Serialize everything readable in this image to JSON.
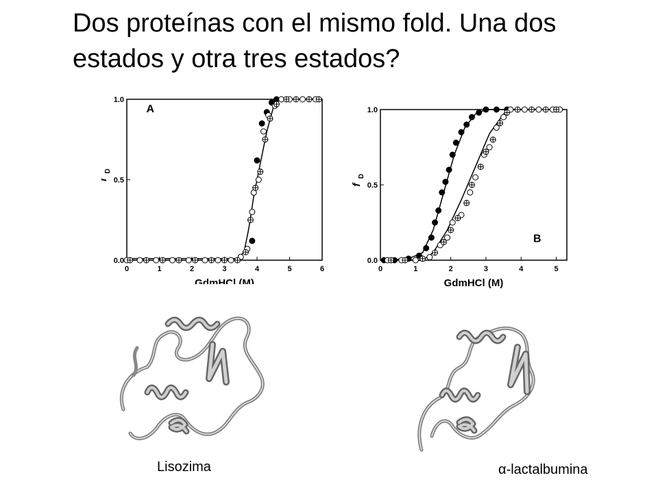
{
  "slide": {
    "title": "Dos proteínas con el mismo fold. Una dos estados y otra tres estados?",
    "captions": {
      "left": "Lisozima",
      "right_prefix": "α",
      "right_suffix": "-lactalbumina"
    }
  },
  "chart_data": [
    {
      "type": "scatter",
      "panel_label": "A",
      "xlabel": "GdmHCl (M)",
      "ylabel": "f",
      "ylabel_sub": "D",
      "xlim": [
        0,
        6
      ],
      "ylim": [
        0,
        1
      ],
      "xticks": [
        "0",
        "1",
        "2",
        "3",
        "4",
        "5",
        "6"
      ],
      "yticks": [
        "0.0",
        "0.5",
        "1.0"
      ],
      "grid": false,
      "fit_curve": [
        [
          0,
          0.01
        ],
        [
          3.4,
          0.01
        ],
        [
          3.6,
          0.05
        ],
        [
          3.75,
          0.2
        ],
        [
          3.9,
          0.4
        ],
        [
          4.1,
          0.6
        ],
        [
          4.3,
          0.8
        ],
        [
          4.5,
          0.95
        ],
        [
          4.7,
          1.0
        ],
        [
          6,
          1.0
        ]
      ],
      "series": [
        {
          "marker": "filled",
          "points": [
            [
              3.85,
              0.12
            ],
            [
              4.0,
              0.62
            ],
            [
              4.15,
              0.85
            ],
            [
              4.3,
              0.92
            ],
            [
              4.45,
              0.98
            ],
            [
              4.6,
              1.0
            ]
          ]
        },
        {
          "marker": "open",
          "points": [
            [
              0,
              0.0
            ],
            [
              0.4,
              0.0
            ],
            [
              0.9,
              0.0
            ],
            [
              1.4,
              0.0
            ],
            [
              1.9,
              0.0
            ],
            [
              2.4,
              0.0
            ],
            [
              2.8,
              0.0
            ],
            [
              3.2,
              0.0
            ],
            [
              3.5,
              0.02
            ],
            [
              3.7,
              0.07
            ],
            [
              3.85,
              0.3
            ],
            [
              3.9,
              0.42
            ],
            [
              4.05,
              0.5
            ],
            [
              4.2,
              0.8
            ],
            [
              4.35,
              0.9
            ],
            [
              4.55,
              0.96
            ],
            [
              4.75,
              1.0
            ],
            [
              5.0,
              1.0
            ],
            [
              5.4,
              1.0
            ],
            [
              5.8,
              1.0
            ]
          ]
        },
        {
          "marker": "crossed",
          "points": [
            [
              0.1,
              0.0
            ],
            [
              0.6,
              0.0
            ],
            [
              1.1,
              0.0
            ],
            [
              1.6,
              0.0
            ],
            [
              2.1,
              0.0
            ],
            [
              2.6,
              0.0
            ],
            [
              3.0,
              0.0
            ],
            [
              3.4,
              0.0
            ],
            [
              3.65,
              0.05
            ],
            [
              3.8,
              0.25
            ],
            [
              3.95,
              0.45
            ],
            [
              4.1,
              0.55
            ],
            [
              4.25,
              0.75
            ],
            [
              4.4,
              0.88
            ],
            [
              4.6,
              0.97
            ],
            [
              4.9,
              1.0
            ],
            [
              5.2,
              1.0
            ],
            [
              5.6,
              1.0
            ],
            [
              5.9,
              1.0
            ]
          ]
        }
      ]
    },
    {
      "type": "scatter",
      "panel_label": "B",
      "xlabel": "GdmHCl (M)",
      "ylabel": "f",
      "ylabel_sub": "D",
      "xlim": [
        0,
        5.3
      ],
      "ylim": [
        0,
        1
      ],
      "xticks": [
        "0",
        "1",
        "2",
        "3",
        "4",
        "5"
      ],
      "yticks": [
        "0.0",
        "0.5",
        "1.0"
      ],
      "grid": false,
      "fit_curves": [
        [
          [
            0,
            0.0
          ],
          [
            0.8,
            0.01
          ],
          [
            1.2,
            0.05
          ],
          [
            1.5,
            0.2
          ],
          [
            1.8,
            0.45
          ],
          [
            2.1,
            0.7
          ],
          [
            2.4,
            0.88
          ],
          [
            2.7,
            0.97
          ],
          [
            3.0,
            1.0
          ],
          [
            5.2,
            1.0
          ]
        ],
        [
          [
            0,
            0.0
          ],
          [
            1.2,
            0.0
          ],
          [
            1.5,
            0.05
          ],
          [
            1.9,
            0.2
          ],
          [
            2.3,
            0.4
          ],
          [
            2.7,
            0.62
          ],
          [
            3.1,
            0.84
          ],
          [
            3.5,
            0.97
          ],
          [
            3.8,
            1.0
          ],
          [
            5.2,
            1.0
          ]
        ]
      ],
      "series": [
        {
          "marker": "filled",
          "points": [
            [
              0.1,
              0.0
            ],
            [
              0.4,
              0.0
            ],
            [
              0.8,
              0.01
            ],
            [
              1.1,
              0.03
            ],
            [
              1.3,
              0.08
            ],
            [
              1.45,
              0.15
            ],
            [
              1.55,
              0.25
            ],
            [
              1.65,
              0.33
            ],
            [
              1.75,
              0.45
            ],
            [
              1.85,
              0.52
            ],
            [
              1.95,
              0.6
            ],
            [
              2.05,
              0.7
            ],
            [
              2.15,
              0.78
            ],
            [
              2.3,
              0.85
            ],
            [
              2.45,
              0.9
            ],
            [
              2.6,
              0.95
            ],
            [
              2.8,
              0.98
            ],
            [
              3.0,
              1.0
            ],
            [
              3.3,
              1.0
            ],
            [
              3.6,
              1.0
            ]
          ]
        },
        {
          "marker": "open",
          "points": [
            [
              0.2,
              0.0
            ],
            [
              0.6,
              0.0
            ],
            [
              1.0,
              0.0
            ],
            [
              1.4,
              0.02
            ],
            [
              1.7,
              0.1
            ],
            [
              1.9,
              0.15
            ],
            [
              2.05,
              0.25
            ],
            [
              2.3,
              0.3
            ],
            [
              2.55,
              0.45
            ],
            [
              2.7,
              0.55
            ],
            [
              2.95,
              0.7
            ],
            [
              3.1,
              0.75
            ],
            [
              3.3,
              0.88
            ],
            [
              3.5,
              0.95
            ],
            [
              3.7,
              1.0
            ],
            [
              4.1,
              1.0
            ],
            [
              4.5,
              1.0
            ],
            [
              4.9,
              1.0
            ],
            [
              5.1,
              1.0
            ]
          ]
        },
        {
          "marker": "crossed",
          "points": [
            [
              0.3,
              0.0
            ],
            [
              0.7,
              0.0
            ],
            [
              1.2,
              0.01
            ],
            [
              1.55,
              0.05
            ],
            [
              1.8,
              0.12
            ],
            [
              2.0,
              0.2
            ],
            [
              2.2,
              0.28
            ],
            [
              2.45,
              0.38
            ],
            [
              2.6,
              0.5
            ],
            [
              2.85,
              0.62
            ],
            [
              3.0,
              0.72
            ],
            [
              3.2,
              0.8
            ],
            [
              3.4,
              0.91
            ],
            [
              3.6,
              0.98
            ],
            [
              3.9,
              1.0
            ],
            [
              4.3,
              1.0
            ],
            [
              4.7,
              1.0
            ],
            [
              5.0,
              1.0
            ]
          ]
        }
      ]
    }
  ]
}
